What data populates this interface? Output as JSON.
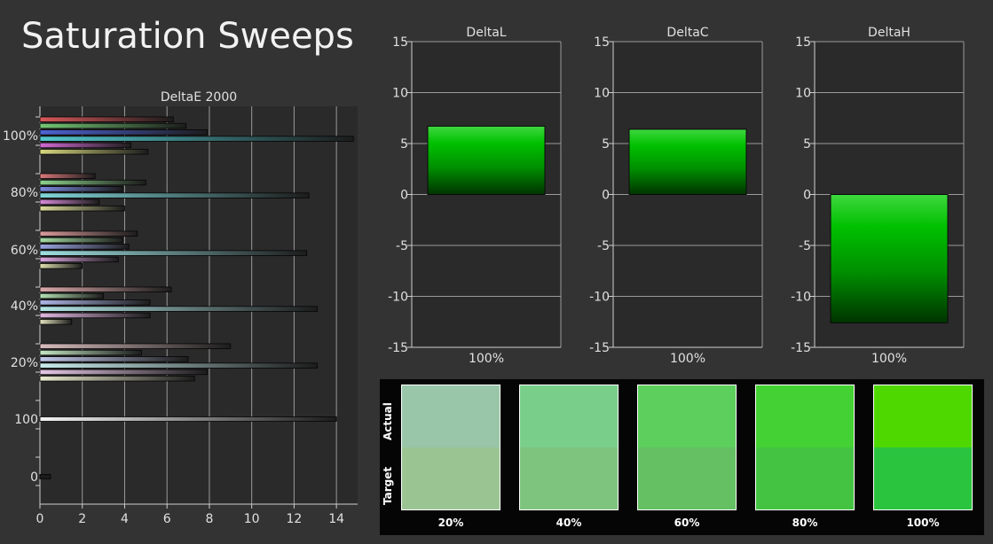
{
  "page_title": "Saturation Sweeps",
  "chart_data": [
    {
      "type": "bar",
      "orientation": "horizontal",
      "title": "DeltaE 2000",
      "xlim": [
        0,
        15
      ],
      "x_ticks": [
        0,
        2,
        4,
        6,
        8,
        10,
        12,
        14
      ],
      "grid": true,
      "groups": [
        {
          "label": "100%",
          "bars": [
            {
              "color": "#d9585a",
              "value": 6.3
            },
            {
              "color": "#74c674",
              "value": 6.9
            },
            {
              "color": "#4d63d3",
              "value": 7.9
            },
            {
              "color": "#52c8ce",
              "value": 14.8
            },
            {
              "color": "#d06ad2",
              "value": 4.3
            },
            {
              "color": "#d8d880",
              "value": 5.1
            }
          ]
        },
        {
          "label": "80%",
          "bars": [
            {
              "color": "#d9787a",
              "value": 2.6
            },
            {
              "color": "#8cd28c",
              "value": 5.0
            },
            {
              "color": "#7a88dc",
              "value": 3.9
            },
            {
              "color": "#80d6d8",
              "value": 12.7
            },
            {
              "color": "#d68ad8",
              "value": 2.8
            },
            {
              "color": "#dcdc9a",
              "value": 4.0
            }
          ]
        },
        {
          "label": "60%",
          "bars": [
            {
              "color": "#d99a9b",
              "value": 4.6
            },
            {
              "color": "#a4dca4",
              "value": 3.9
            },
            {
              "color": "#9aa4e2",
              "value": 4.2
            },
            {
              "color": "#9edfe0",
              "value": 12.6
            },
            {
              "color": "#dca6de",
              "value": 3.7
            },
            {
              "color": "#e0e0b0",
              "value": 2.0
            }
          ]
        },
        {
          "label": "40%",
          "bars": [
            {
              "color": "#dba9aa",
              "value": 6.2
            },
            {
              "color": "#b4e2b4",
              "value": 3.0
            },
            {
              "color": "#aeb6e6",
              "value": 5.2
            },
            {
              "color": "#b4e6e6",
              "value": 13.1
            },
            {
              "color": "#e0b6e0",
              "value": 5.2
            },
            {
              "color": "#e4e4c0",
              "value": 1.5
            }
          ]
        },
        {
          "label": "20%",
          "bars": [
            {
              "color": "#d8bcbd",
              "value": 9.0
            },
            {
              "color": "#c4e6c4",
              "value": 4.8
            },
            {
              "color": "#c2c8ea",
              "value": 7.0
            },
            {
              "color": "#c8ecec",
              "value": 13.1
            },
            {
              "color": "#e6c8e6",
              "value": 7.9
            },
            {
              "color": "#eaeace",
              "value": 7.3
            }
          ]
        },
        {
          "label": "100",
          "bars": [
            {
              "color": "#f4f4f4",
              "value": 14.0
            }
          ]
        },
        {
          "label": "0",
          "bars": [
            {
              "color": "#1a1a1a",
              "value": 0.5
            }
          ]
        }
      ]
    },
    {
      "type": "bar",
      "title": "DeltaL",
      "categories": [
        "100%"
      ],
      "values": [
        6.7
      ],
      "ylim": [
        -15,
        15
      ],
      "y_ticks": [
        15,
        10,
        5,
        0,
        -5,
        -10,
        -15
      ],
      "color": "#00c000"
    },
    {
      "type": "bar",
      "title": "DeltaC",
      "categories": [
        "100%"
      ],
      "values": [
        6.4
      ],
      "ylim": [
        -15,
        15
      ],
      "y_ticks": [
        15,
        10,
        5,
        0,
        -5,
        -10,
        -15
      ],
      "color": "#00c000"
    },
    {
      "type": "bar",
      "title": "DeltaH",
      "categories": [
        "100%"
      ],
      "values": [
        -12.6
      ],
      "ylim": [
        -15,
        15
      ],
      "y_ticks": [
        15,
        10,
        5,
        0,
        -5,
        -10,
        -15
      ],
      "color": "#00c000"
    }
  ],
  "swatches": {
    "actual_label": "Actual",
    "target_label": "Target",
    "items": [
      {
        "label": "20%",
        "actual_color": "#99c6a8",
        "target_color": "#9bc493"
      },
      {
        "label": "40%",
        "actual_color": "#79ce8a",
        "target_color": "#7ec47f"
      },
      {
        "label": "60%",
        "actual_color": "#5ccf5c",
        "target_color": "#64c063"
      },
      {
        "label": "80%",
        "actual_color": "#44d133",
        "target_color": "#44c343"
      },
      {
        "label": "100%",
        "actual_color": "#4fd700",
        "target_color": "#2ac43e"
      }
    ]
  }
}
